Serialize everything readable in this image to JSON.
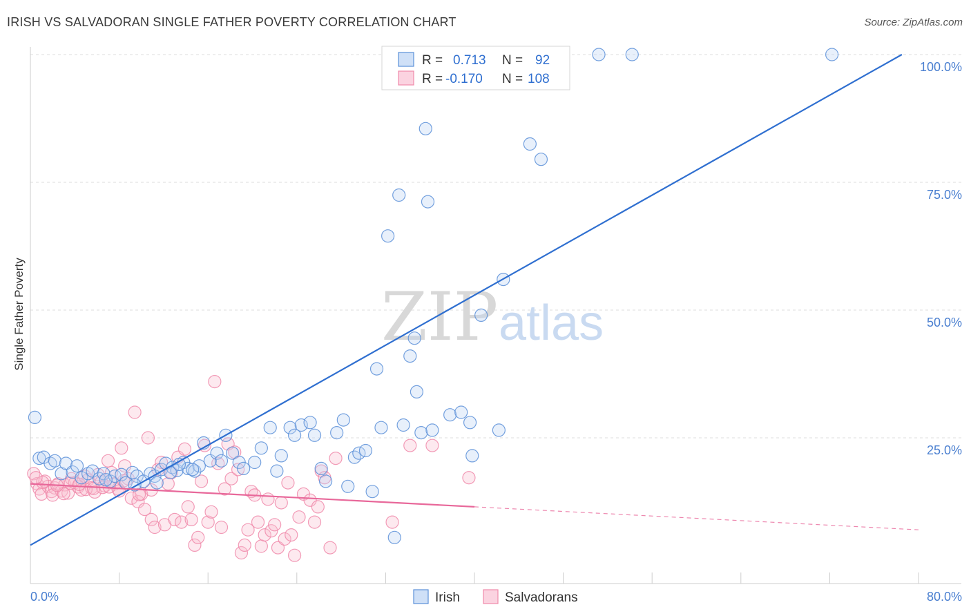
{
  "header": {
    "title": "IRISH VS SALVADORAN SINGLE FATHER POVERTY CORRELATION CHART",
    "source": "Source: ZipAtlas.com"
  },
  "watermark": {
    "part1": "ZIP",
    "part2": "atlas"
  },
  "legend_top": {
    "rows": [
      {
        "r_label": "R =",
        "r_value": "0.713",
        "n_label": "N =",
        "n_value": "92",
        "color": "#5b8fd8"
      },
      {
        "r_label": "R =",
        "r_value": "-0.170",
        "n_label": "N =",
        "n_value": "108",
        "color": "#f08aaa"
      }
    ]
  },
  "legend_bottom": {
    "items": [
      {
        "label": "Irish",
        "color": "#5b8fd8"
      },
      {
        "label": "Salvadorans",
        "color": "#f08aaa"
      }
    ]
  },
  "chart_data": {
    "type": "scatter",
    "title": "IRISH VS SALVADORAN SINGLE FATHER POVERTY CORRELATION CHART",
    "ylabel": "Single Father Poverty",
    "xlabel": "",
    "xlim": [
      0,
      80
    ],
    "ylim": [
      0,
      100
    ],
    "x_tick_labels": [
      "0.0%",
      "80.0%"
    ],
    "y_ticks": [
      25,
      50,
      75,
      100
    ],
    "y_tick_labels": [
      "25.0%",
      "50.0%",
      "75.0%",
      "100.0%"
    ],
    "grid": true,
    "series": [
      {
        "name": "Irish",
        "color": "#5b8fd8",
        "trend": {
          "x0": 0,
          "y0": 4,
          "x1": 78.5,
          "y1": 100,
          "solid_to": 78.5
        },
        "points": [
          [
            0.4,
            29
          ],
          [
            0.8,
            21
          ],
          [
            1.2,
            21.2
          ],
          [
            1.8,
            20
          ],
          [
            2.2,
            20.5
          ],
          [
            2.8,
            18
          ],
          [
            3.2,
            20
          ],
          [
            3.8,
            18.3
          ],
          [
            4.2,
            19.5
          ],
          [
            4.6,
            17.2
          ],
          [
            5.2,
            18
          ],
          [
            5.6,
            18.5
          ],
          [
            6.2,
            17
          ],
          [
            6.6,
            18
          ],
          [
            7.2,
            16.5
          ],
          [
            7.6,
            17.5
          ],
          [
            8.2,
            17.8
          ],
          [
            8.6,
            16.2
          ],
          [
            9.2,
            18.2
          ],
          [
            9.6,
            17.5
          ],
          [
            10.2,
            16.5
          ],
          [
            10.8,
            18
          ],
          [
            11.2,
            17.5
          ],
          [
            11.8,
            18.8
          ],
          [
            12.2,
            20
          ],
          [
            12.8,
            19.2
          ],
          [
            13.2,
            18.6
          ],
          [
            13.8,
            20.2
          ],
          [
            14.2,
            19
          ],
          [
            14.8,
            18.5
          ],
          [
            15.2,
            19.5
          ],
          [
            15.6,
            24
          ],
          [
            16.2,
            20.5
          ],
          [
            16.8,
            22
          ],
          [
            17.2,
            20.5
          ],
          [
            17.6,
            25.5
          ],
          [
            18.2,
            22
          ],
          [
            18.8,
            20.2
          ],
          [
            19.2,
            19
          ],
          [
            20.2,
            20.2
          ],
          [
            20.8,
            23
          ],
          [
            21.6,
            27
          ],
          [
            22.2,
            18.5
          ],
          [
            22.6,
            21.5
          ],
          [
            23.4,
            27
          ],
          [
            23.8,
            25.5
          ],
          [
            24.4,
            27.5
          ],
          [
            25.2,
            28
          ],
          [
            25.6,
            25.5
          ],
          [
            26.2,
            19
          ],
          [
            26.6,
            16.5
          ],
          [
            27.6,
            26
          ],
          [
            28.2,
            28.5
          ],
          [
            28.6,
            15.5
          ],
          [
            29.2,
            21.2
          ],
          [
            29.6,
            22
          ],
          [
            30.2,
            22.5
          ],
          [
            30.8,
            14.5
          ],
          [
            31.2,
            38.5
          ],
          [
            31.6,
            27
          ],
          [
            32.2,
            64.5
          ],
          [
            32.8,
            5.5
          ],
          [
            33.2,
            72.5
          ],
          [
            33.6,
            27.5
          ],
          [
            34.2,
            41
          ],
          [
            34.6,
            44.5
          ],
          [
            34.8,
            34
          ],
          [
            35.2,
            26
          ],
          [
            35.6,
            85.5
          ],
          [
            35.8,
            71.2
          ],
          [
            36.2,
            26.5
          ],
          [
            37.8,
            29.5
          ],
          [
            38.8,
            30
          ],
          [
            39.6,
            28
          ],
          [
            39.8,
            21.5
          ],
          [
            40.6,
            49
          ],
          [
            42.2,
            26.5
          ],
          [
            42.6,
            56
          ],
          [
            45,
            82.5
          ],
          [
            46,
            79.5
          ],
          [
            37,
            100
          ],
          [
            40.2,
            100
          ],
          [
            42,
            100
          ],
          [
            51.2,
            100
          ],
          [
            54.2,
            100
          ],
          [
            72.2,
            100
          ],
          [
            9.4,
            15.8
          ],
          [
            11.4,
            16.2
          ],
          [
            12.6,
            18.2
          ],
          [
            13.4,
            19.8
          ],
          [
            14.6,
            18.8
          ],
          [
            6.8,
            16.8
          ]
        ]
      },
      {
        "name": "Salvadorans",
        "color": "#f08aaa",
        "trend": {
          "x0": 0,
          "y0": 16,
          "x1": 80,
          "y1": 7,
          "solid_to": 40
        },
        "points": [
          [
            0.3,
            18
          ],
          [
            0.6,
            16
          ],
          [
            0.8,
            15
          ],
          [
            1,
            14
          ],
          [
            1.3,
            16.5
          ],
          [
            1.6,
            15.5
          ],
          [
            1.9,
            14.5
          ],
          [
            2.2,
            15.2
          ],
          [
            2.5,
            16
          ],
          [
            2.8,
            14.6
          ],
          [
            3.1,
            15.8
          ],
          [
            3.4,
            14.2
          ],
          [
            3.7,
            17
          ],
          [
            4,
            16.2
          ],
          [
            4.3,
            15.4
          ],
          [
            4.6,
            14.8
          ],
          [
            4.9,
            17.5
          ],
          [
            5.2,
            16.8
          ],
          [
            5.5,
            15.2
          ],
          [
            5.8,
            14.4
          ],
          [
            6.1,
            17.8
          ],
          [
            6.4,
            16.4
          ],
          [
            6.7,
            15.6
          ],
          [
            7,
            20.5
          ],
          [
            7.3,
            18.2
          ],
          [
            7.6,
            16
          ],
          [
            7.9,
            15
          ],
          [
            8.2,
            23
          ],
          [
            8.5,
            19.5
          ],
          [
            8.8,
            17
          ],
          [
            9.1,
            13.2
          ],
          [
            9.4,
            30
          ],
          [
            9.7,
            12.5
          ],
          [
            10,
            14
          ],
          [
            10.3,
            11
          ],
          [
            10.6,
            25
          ],
          [
            10.9,
            9
          ],
          [
            11.2,
            7.5
          ],
          [
            11.5,
            18.8
          ],
          [
            11.8,
            20.2
          ],
          [
            12.1,
            8
          ],
          [
            12.4,
            16
          ],
          [
            12.7,
            18.2
          ],
          [
            13,
            9
          ],
          [
            13.3,
            21.2
          ],
          [
            13.6,
            8.5
          ],
          [
            13.9,
            22.8
          ],
          [
            14.2,
            11.5
          ],
          [
            14.5,
            9
          ],
          [
            14.8,
            4
          ],
          [
            15.1,
            5.5
          ],
          [
            15.4,
            16.5
          ],
          [
            15.7,
            23.5
          ],
          [
            16,
            8.5
          ],
          [
            16.3,
            10.5
          ],
          [
            16.6,
            36
          ],
          [
            16.9,
            20
          ],
          [
            17.2,
            7.5
          ],
          [
            17.5,
            15
          ],
          [
            17.8,
            23.8
          ],
          [
            18.1,
            17
          ],
          [
            18.4,
            22.2
          ],
          [
            18.7,
            18.8
          ],
          [
            19,
            2.5
          ],
          [
            19.3,
            4
          ],
          [
            19.6,
            7
          ],
          [
            19.9,
            14.5
          ],
          [
            20.2,
            13.8
          ],
          [
            20.5,
            8.5
          ],
          [
            20.8,
            3.8
          ],
          [
            21.1,
            6
          ],
          [
            21.4,
            13
          ],
          [
            21.7,
            6.8
          ],
          [
            22,
            8
          ],
          [
            22.3,
            3.5
          ],
          [
            22.6,
            12.3
          ],
          [
            22.9,
            5.2
          ],
          [
            23.2,
            16.2
          ],
          [
            23.5,
            6
          ],
          [
            23.8,
            2
          ],
          [
            24.2,
            9.5
          ],
          [
            24.6,
            14
          ],
          [
            25.2,
            12.8
          ],
          [
            25.6,
            8.5
          ],
          [
            25.9,
            11.5
          ],
          [
            26.2,
            18.5
          ],
          [
            26.5,
            17.2
          ],
          [
            27,
            3.5
          ],
          [
            27.5,
            21
          ],
          [
            32.6,
            8.5
          ],
          [
            34.2,
            23.5
          ],
          [
            36.2,
            23.5
          ],
          [
            39.5,
            17.2
          ],
          [
            2,
            13.8
          ],
          [
            3,
            14.1
          ],
          [
            5,
            14.9
          ],
          [
            6.5,
            15.3
          ],
          [
            8,
            14.6
          ],
          [
            9.8,
            13.9
          ],
          [
            10.9,
            14.8
          ],
          [
            1.1,
            16.3
          ],
          [
            2.4,
            15.7
          ],
          [
            3.6,
            16.1
          ],
          [
            4.4,
            15.9
          ],
          [
            5.7,
            15.1
          ],
          [
            7.1,
            15.4
          ],
          [
            8.4,
            16.6
          ],
          [
            0.5,
            17.2
          ]
        ]
      }
    ]
  }
}
